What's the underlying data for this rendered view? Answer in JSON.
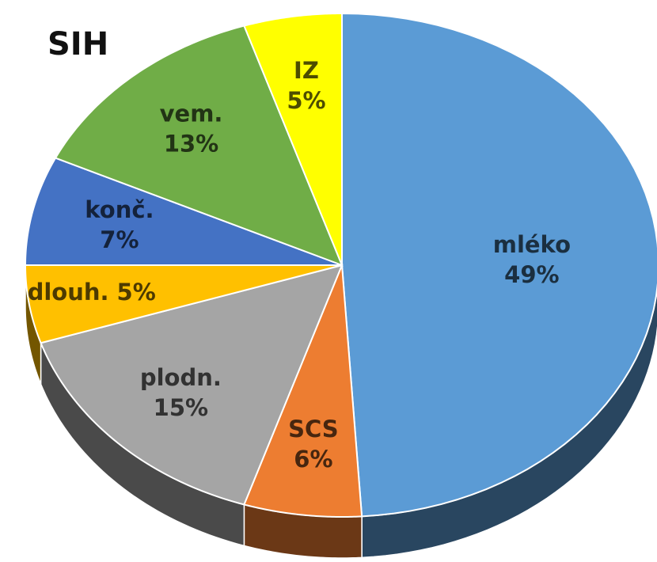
{
  "chart_data": {
    "type": "pie",
    "title": "SIH",
    "categories": [
      "mléko",
      "SCS",
      "plodn.",
      "dlouh.",
      "konč.",
      "vem.",
      "IZ"
    ],
    "values": [
      49,
      6,
      15,
      5,
      7,
      13,
      5
    ],
    "value_labels": [
      "49%",
      "6%",
      "15%",
      "5%",
      "7%",
      "13%",
      "5%"
    ],
    "colors": [
      "#5b9bd5",
      "#ed7d31",
      "#a5a5a5",
      "#ffc000",
      "#4472c4",
      "#70ad47",
      "#ffff00"
    ]
  }
}
